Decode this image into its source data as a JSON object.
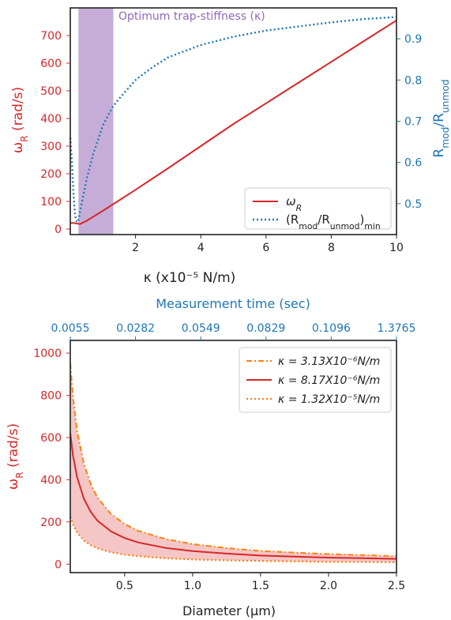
{
  "colors": {
    "red": "#d62728",
    "blue": "#1f77b4",
    "orange": "#ff7f0e",
    "purple": "#9467bd",
    "band": "#c6add8",
    "fill": "#f5c6c6",
    "axis": "#222222"
  },
  "chart_data": [
    {
      "type": "line",
      "title": "",
      "xlabel": "κ (x10⁻⁵ N/m)",
      "ylabel_left": "ω_R (rad/s)",
      "ylabel_right": "R_mod/R_unmod",
      "xlim": [
        0.0,
        10.0
      ],
      "ylim_left": [
        -20,
        800
      ],
      "ylim_right": [
        0.425,
        0.975
      ],
      "xticks": [
        "2",
        "4",
        "6",
        "8",
        "10"
      ],
      "xtick_values": [
        2,
        4,
        6,
        8,
        10
      ],
      "yticks_left": [
        "0",
        "100",
        "200",
        "300",
        "400",
        "500",
        "600",
        "700"
      ],
      "ytick_left_values": [
        0,
        100,
        200,
        300,
        400,
        500,
        600,
        700
      ],
      "yticks_right": [
        "0.5",
        "0.6",
        "0.7",
        "0.8",
        "0.9"
      ],
      "ytick_right_values": [
        0.5,
        0.6,
        0.7,
        0.8,
        0.9
      ],
      "annotation": "Optimum trap-stiffness (κ)",
      "band_x": [
        0.25,
        1.32
      ],
      "legend_position": "lower-right",
      "series": [
        {
          "name": "ω_R",
          "axis": "left",
          "style": "solid",
          "x": [
            0.0,
            0.1,
            0.2,
            0.3,
            0.5,
            1.0,
            1.5,
            2.0,
            3.0,
            4.0,
            5.0,
            6.0,
            7.0,
            8.0,
            9.0,
            10.0
          ],
          "y": [
            22,
            22,
            20,
            18,
            30,
            66,
            104,
            142,
            220,
            300,
            380,
            455,
            530,
            605,
            680,
            755
          ]
        },
        {
          "name": "(R_mod/R_unmod)_min",
          "axis": "right",
          "style": "dotted",
          "x": [
            0.0,
            0.05,
            0.1,
            0.15,
            0.2,
            0.25,
            0.3,
            0.4,
            0.5,
            0.7,
            1.0,
            1.3,
            1.5,
            2.0,
            2.5,
            3.0,
            4.0,
            5.0,
            6.0,
            7.0,
            8.0,
            9.0,
            10.0
          ],
          "y": [
            0.66,
            0.6,
            0.52,
            0.47,
            0.455,
            0.46,
            0.48,
            0.52,
            0.56,
            0.62,
            0.69,
            0.735,
            0.755,
            0.8,
            0.83,
            0.855,
            0.885,
            0.905,
            0.92,
            0.93,
            0.94,
            0.948,
            0.953
          ]
        }
      ]
    },
    {
      "type": "line",
      "title": "",
      "xlabel": "Diameter (μm)",
      "ylabel": "ω_R (rad/s)",
      "top_xlabel": "Measurement time (sec)",
      "xlim": [
        0.1,
        2.5
      ],
      "ylim": [
        -40,
        1060
      ],
      "xticks": [
        "0.5",
        "1.0",
        "1.5",
        "2.0",
        "2.5"
      ],
      "xtick_values": [
        0.5,
        1.0,
        1.5,
        2.0,
        2.5
      ],
      "top_xticks": [
        "0.0055",
        "0.0282",
        "0.0549",
        "0.0829",
        "0.1096",
        "1.3765"
      ],
      "top_xtick_positions": [
        0.1,
        0.58,
        1.06,
        1.54,
        2.02,
        2.5
      ],
      "yticks": [
        "0",
        "200",
        "400",
        "600",
        "800",
        "1000"
      ],
      "ytick_values": [
        0,
        200,
        400,
        600,
        800,
        1000
      ],
      "legend_position": "top-right",
      "x": [
        0.1,
        0.12,
        0.15,
        0.2,
        0.25,
        0.3,
        0.4,
        0.5,
        0.6,
        0.8,
        1.0,
        1.25,
        1.5,
        1.75,
        2.0,
        2.25,
        2.5
      ],
      "series": [
        {
          "name": "κ = 3.13X10⁻⁶N/m",
          "style": "dashdot",
          "color": "orange",
          "values": [
            950,
            790,
            630,
            475,
            380,
            315,
            237,
            190,
            158,
            119,
            95,
            76,
            63,
            55,
            48,
            43,
            38
          ]
        },
        {
          "name": "κ = 8.17X10⁻⁶N/m",
          "style": "solid",
          "color": "red",
          "values": [
            620,
            515,
            412,
            310,
            248,
            206,
            155,
            124,
            103,
            77,
            62,
            50,
            41,
            36,
            31,
            28,
            25
          ]
        },
        {
          "name": "κ = 1.32X10⁻⁵N/m",
          "style": "dotted",
          "color": "orange",
          "values": [
            225,
            188,
            150,
            112,
            90,
            75,
            56,
            45,
            38,
            28,
            22,
            18,
            15,
            13,
            11,
            10,
            9
          ]
        }
      ]
    }
  ]
}
